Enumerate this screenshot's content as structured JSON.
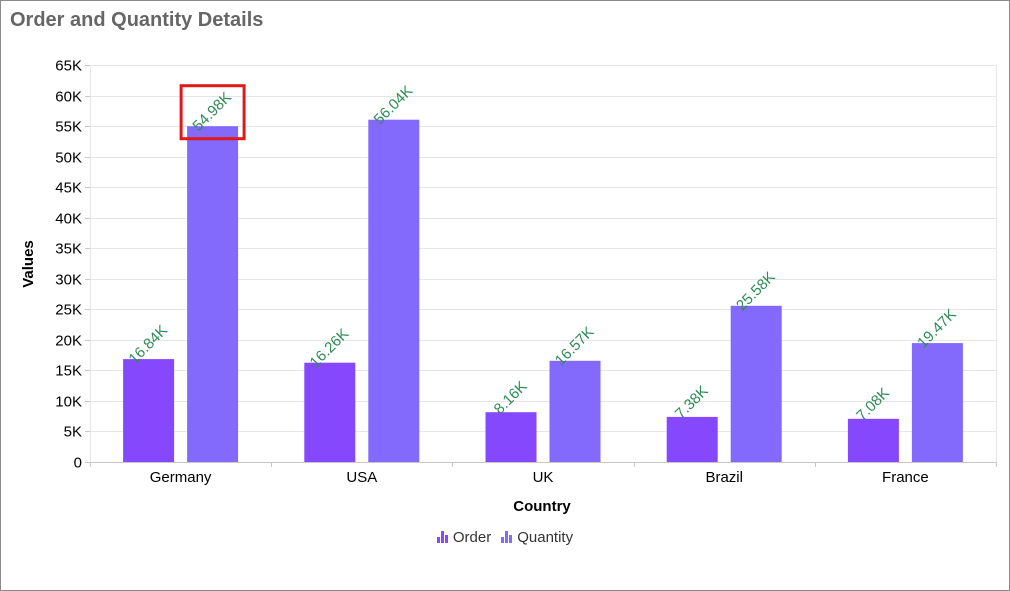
{
  "chart_data": {
    "type": "bar",
    "title": "Order and Quantity Details",
    "xlabel": "Country",
    "ylabel": "Values",
    "categories": [
      "Germany",
      "USA",
      "UK",
      "Brazil",
      "France"
    ],
    "series": [
      {
        "name": "Order",
        "color": "#8548fd",
        "values": [
          16840,
          16260,
          8160,
          7380,
          7080
        ],
        "labels": [
          "16.84K",
          "16.26K",
          "8.16K",
          "7.38K",
          "7.08K"
        ]
      },
      {
        "name": "Quantity",
        "color": "#8369fc",
        "values": [
          54980,
          56040,
          16570,
          25580,
          19470
        ],
        "labels": [
          "54.98K",
          "56.04K",
          "16.57K",
          "25.58K",
          "19.47K"
        ]
      }
    ],
    "ylim": [
      0,
      65000
    ],
    "yticks": [
      0,
      5000,
      10000,
      15000,
      20000,
      25000,
      30000,
      35000,
      40000,
      45000,
      50000,
      55000,
      60000,
      65000
    ],
    "ytick_labels": [
      "0",
      "5K",
      "10K",
      "15K",
      "20K",
      "25K",
      "30K",
      "35K",
      "40K",
      "45K",
      "50K",
      "55K",
      "60K",
      "65K"
    ],
    "grid": true,
    "legend_position": "bottom-center",
    "data_label_color": "#2e8b57",
    "highlight": {
      "series": 1,
      "category": 0,
      "color": "#e01818"
    }
  }
}
